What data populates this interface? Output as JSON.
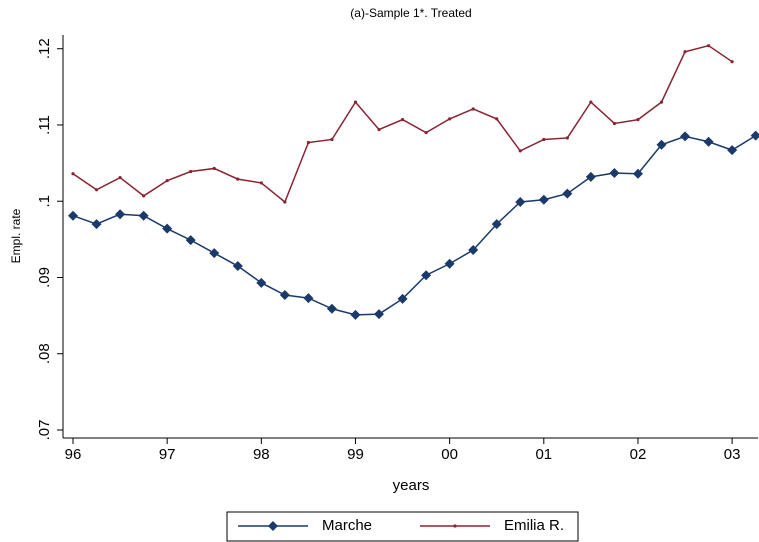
{
  "chart_data": {
    "type": "line",
    "title": "(a)-Sample 1*. Treated",
    "x_label": "years",
    "y_label": "Empl. rate",
    "categories": [
      "96",
      null,
      null,
      null,
      "97",
      null,
      null,
      null,
      "98",
      null,
      null,
      null,
      "99",
      null,
      null,
      null,
      "00",
      null,
      null,
      null,
      "01",
      null,
      null,
      null,
      "02",
      null,
      null,
      null,
      "03",
      null
    ],
    "series": [
      {
        "name": "Marche",
        "color": "#1a3a6b",
        "marker": "diamond",
        "values": [
          0.0981,
          0.097,
          0.0983,
          0.0981,
          0.0964,
          0.0949,
          0.0932,
          0.0915,
          0.0893,
          0.0877,
          0.0873,
          0.0859,
          0.0851,
          0.0852,
          0.0872,
          0.0903,
          0.0918,
          0.0936,
          0.097,
          0.0999,
          0.1002,
          0.101,
          0.1032,
          0.1037,
          0.1036,
          0.1074,
          0.1085,
          0.1078,
          0.1067,
          0.1086
        ]
      },
      {
        "name": "Emilia R.",
        "color": "#8b2332",
        "marker": "dot",
        "values": [
          0.1036,
          0.1015,
          0.1031,
          0.1007,
          0.1027,
          0.1039,
          0.1043,
          0.1029,
          0.1024,
          0.0999,
          0.1077,
          0.1081,
          0.113,
          0.1094,
          0.1107,
          0.109,
          0.1108,
          0.1121,
          0.1108,
          0.1066,
          0.1081,
          0.1083,
          0.113,
          0.1102,
          0.1107,
          0.113,
          0.1196,
          0.1204,
          0.1183,
          null
        ]
      }
    ],
    "ylim": [
      0.06895,
      0.1218
    ],
    "yticks": [
      {
        "value": 0.07,
        "label": ".07"
      },
      {
        "value": 0.08,
        "label": ".08"
      },
      {
        "value": 0.09,
        "label": ".09"
      },
      {
        "value": 0.1,
        "label": ".1"
      },
      {
        "value": 0.11,
        "label": ".11"
      },
      {
        "value": 0.12,
        "label": ".12"
      }
    ],
    "grid": false,
    "legend": "bottom"
  }
}
